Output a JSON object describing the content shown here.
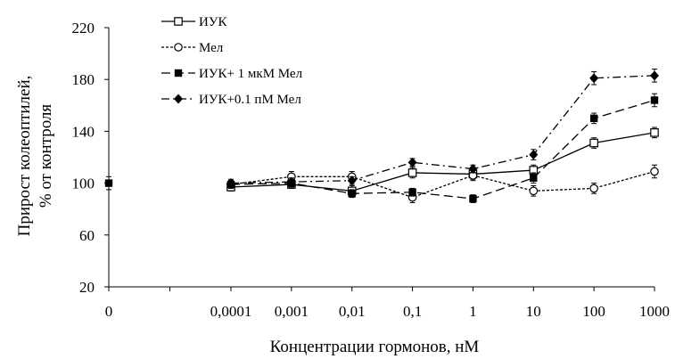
{
  "chart_data": {
    "type": "line",
    "xlabel": "Концентрации гормонов, нМ",
    "ylabel_lines": [
      "Прирост колеоптилей,",
      "% от контроля"
    ],
    "x_ticks": [
      "0",
      "0,0001",
      "0,001",
      "0,01",
      "0,1",
      "1",
      "10",
      "100",
      "1000"
    ],
    "y_ticks": [
      20,
      60,
      100,
      140,
      180,
      220
    ],
    "ylim": [
      20,
      220
    ],
    "control_point": {
      "x": "0",
      "y": 100,
      "err": 5
    },
    "series": [
      {
        "name": "ИУК",
        "marker": "open-square",
        "dash": "solid",
        "x": [
          "0,0001",
          "0,001",
          "0,01",
          "0,1",
          "1",
          "10",
          "100",
          "1000"
        ],
        "values": [
          97,
          99,
          94,
          108,
          107,
          110,
          131,
          139
        ],
        "err": [
          3,
          3,
          4,
          4,
          4,
          4,
          4,
          4
        ]
      },
      {
        "name": "Мел",
        "marker": "open-circle",
        "dash": "short-dash",
        "x": [
          "0,0001",
          "0,001",
          "0,01",
          "0,1",
          "1",
          "10",
          "100",
          "1000"
        ],
        "values": [
          99,
          105,
          105,
          89,
          106,
          94,
          96,
          109
        ],
        "err": [
          3,
          4,
          4,
          4,
          4,
          4,
          4,
          5
        ]
      },
      {
        "name": "ИУК+ 1 мкМ Мел",
        "marker": "filled-square",
        "dash": "long-dash",
        "x": [
          "0,0001",
          "0,001",
          "0,01",
          "0,1",
          "1",
          "10",
          "100",
          "1000"
        ],
        "values": [
          99,
          100,
          92,
          93,
          88,
          104,
          150,
          164
        ],
        "err": [
          3,
          3,
          3,
          3,
          3,
          4,
          4,
          5
        ]
      },
      {
        "name": "ИУК+0.1 пМ Мел",
        "marker": "filled-diamond",
        "dash": "dash-dot",
        "x": [
          "0,0001",
          "0,001",
          "0,01",
          "0,1",
          "1",
          "10",
          "100",
          "1000"
        ],
        "values": [
          100,
          101,
          102,
          116,
          111,
          122,
          181,
          183
        ],
        "err": [
          3,
          3,
          3,
          3,
          3,
          4,
          5,
          5
        ]
      }
    ]
  }
}
